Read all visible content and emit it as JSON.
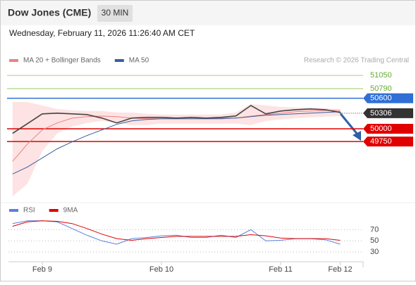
{
  "header": {
    "title": "Dow Jones (CME)",
    "timeframe": "30 MIN",
    "timestamp": "Wednesday, February 11, 2026 11:26:40 AM CET"
  },
  "chart_data": [
    {
      "type": "line",
      "credit": "Research © 2026 Trading Central",
      "categories": [
        null,
        null,
        "Feb 9",
        null,
        null,
        null,
        null,
        null,
        null,
        null,
        "Feb 10",
        null,
        null,
        null,
        null,
        null,
        null,
        null,
        "Feb 11",
        null,
        null,
        null,
        "Feb 12"
      ],
      "values": [
        49909,
        50101,
        50294,
        50307,
        50294,
        50280,
        50211,
        50115,
        50211,
        50225,
        50225,
        50211,
        50225,
        50211,
        50225,
        50252,
        50459,
        50294,
        50349,
        50376,
        50390,
        50376,
        50321
      ],
      "color": "#444444",
      "series": [
        {
          "name": "MA 20 + Bollinger Bands",
          "color": "#f08080",
          "band_color": "#fde3e3",
          "values": [
            49360,
            49700,
            49980,
            50115,
            50210,
            50240,
            50250,
            50240,
            50210,
            50200,
            50200,
            50200,
            50200,
            50200,
            50210,
            50210,
            50250,
            50280,
            50305,
            50335,
            50350,
            50360,
            50360
          ],
          "upper": [
            50527,
            50527,
            50459,
            50390,
            50362,
            50349,
            50349,
            50321,
            50321,
            50294,
            50280,
            50280,
            50280,
            50280,
            50280,
            50321,
            50486,
            50459,
            50431,
            50418,
            50418,
            50404,
            50390
          ],
          "lower": [
            48671,
            48919,
            49565,
            49909,
            50046,
            50115,
            50156,
            50115,
            50074,
            50074,
            50101,
            50101,
            50101,
            50101,
            50101,
            50101,
            50074,
            50156,
            50184,
            50211,
            50225,
            50239,
            50252
          ]
        },
        {
          "name": "MA 50",
          "color": "#3a5fa0",
          "values": [
            49111,
            49249,
            49428,
            49606,
            49744,
            49868,
            49978,
            50088,
            50156,
            50184,
            50198,
            50198,
            50198,
            50198,
            50198,
            50211,
            50239,
            50266,
            50280,
            50294,
            50307,
            50321,
            50335
          ]
        }
      ],
      "ylim": [
        48590,
        51190
      ],
      "levels": [
        {
          "value": 51050,
          "color": "#8bc34a",
          "boxed": false
        },
        {
          "value": 50790,
          "color": "#8bc34a",
          "boxed": false
        },
        {
          "value": 50600,
          "color": "#2f6fd6",
          "boxed": true
        },
        {
          "value": 50306,
          "color": "#333333",
          "boxed": true,
          "line": false
        },
        {
          "value": 50000,
          "color": "#e00000",
          "boxed": true
        },
        {
          "value": 49750,
          "color": "#e00000",
          "boxed": true
        }
      ]
    },
    {
      "type": "line",
      "series": [
        {
          "name": "RSI",
          "color": "#5b7fdd",
          "values": [
            81,
            86,
            86,
            84,
            72,
            60,
            50,
            44,
            54,
            56,
            59,
            60,
            56,
            56,
            60,
            56,
            70,
            50,
            51,
            54,
            54,
            52,
            44
          ]
        },
        {
          "name": "9MA",
          "color": "#e00000",
          "values": [
            76,
            84,
            86,
            85,
            81,
            72,
            62,
            54,
            51,
            54,
            56,
            58,
            58,
            58,
            58,
            58,
            61,
            59,
            55,
            54,
            54,
            54,
            51
          ]
        }
      ],
      "ylim": [
        15,
        97
      ],
      "yticks": [
        30,
        50,
        70
      ],
      "grid": true
    }
  ]
}
